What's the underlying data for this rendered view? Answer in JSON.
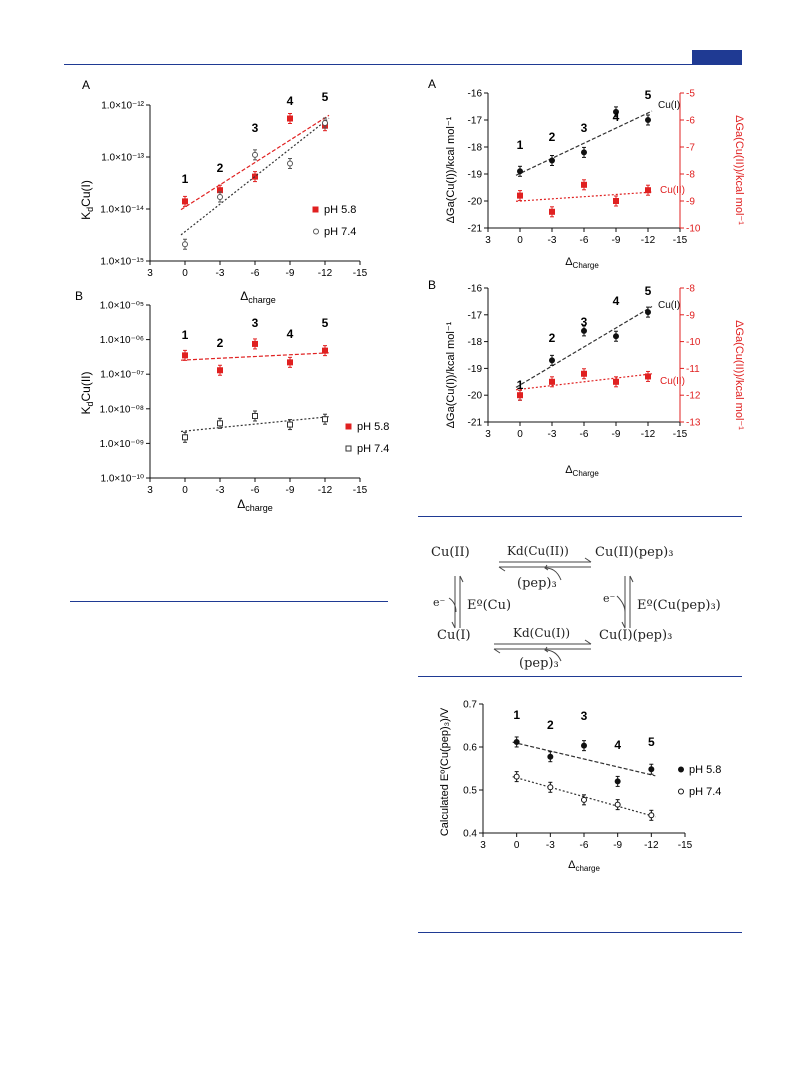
{
  "colors": {
    "accent": "#1f3a93",
    "red": "#e02020",
    "black": "#111111"
  },
  "panel1A": {
    "label": "A",
    "ylabel_main": "K",
    "ylabel_sub": "d",
    "ylabel_rest": "Cu(I)",
    "xlabel_main": "Δ",
    "xlabel_sub": "charge",
    "yticks": [
      "1.0×10⁻¹²",
      "1.0×10⁻¹³",
      "1.0×10⁻¹⁴",
      "1.0×10⁻¹⁵"
    ],
    "xticks": [
      "3",
      "0",
      "-3",
      "-6",
      "-9",
      "-12",
      "-15"
    ],
    "legend": [
      "pH 5.8",
      "pH 7.4"
    ],
    "peptides": [
      "1",
      "2",
      "3",
      "4",
      "5"
    ]
  },
  "panel1B": {
    "label": "B",
    "ylabel_main": "K",
    "ylabel_sub": "d",
    "ylabel_rest": "Cu(II)",
    "xlabel_main": "Δ",
    "xlabel_sub": "charge",
    "yticks": [
      "1.0×10⁻⁰⁵",
      "1.0×10⁻⁰⁶",
      "1.0×10⁻⁰⁷",
      "1.0×10⁻⁰⁸",
      "1.0×10⁻⁰⁹",
      "1.0×10⁻¹⁰"
    ],
    "xticks": [
      "3",
      "0",
      "-3",
      "-6",
      "-9",
      "-12",
      "-15"
    ],
    "legend": [
      "pH 5.8",
      "pH 7.4"
    ],
    "peptides": [
      "1",
      "2",
      "3",
      "4",
      "5"
    ]
  },
  "panel2A": {
    "label": "A",
    "ylabel_left": "ΔGa(Cu(I))/kcal mol⁻¹",
    "ylabel_right": "ΔGa(Cu(II))/kcal mol⁻¹",
    "xlabel_main": "Δ",
    "xlabel_sub": "Charge",
    "yticks_left": [
      "-16",
      "-17",
      "-18",
      "-19",
      "-20",
      "-21"
    ],
    "yticks_right": [
      "-5",
      "-6",
      "-7",
      "-8",
      "-9",
      "-10"
    ],
    "xticks": [
      "3",
      "0",
      "-3",
      "-6",
      "-9",
      "-12",
      "-15"
    ],
    "series_labels": [
      "Cu(I)",
      "Cu(II)"
    ],
    "peptides": [
      "1",
      "2",
      "3",
      "4",
      "5"
    ]
  },
  "panel2B": {
    "label": "B",
    "ylabel_left": "ΔGa(Cu(I))/kcal mol⁻¹",
    "ylabel_right": "ΔGa(Cu(II))/kcal mol⁻¹",
    "xlabel_main": "Δ",
    "xlabel_sub": "Charge",
    "yticks_left": [
      "-16",
      "-17",
      "-18",
      "-19",
      "-20",
      "-21"
    ],
    "yticks_right": [
      "-8",
      "-9",
      "-10",
      "-11",
      "-12",
      "-13"
    ],
    "xticks": [
      "3",
      "0",
      "-3",
      "-6",
      "-9",
      "-12",
      "-15"
    ],
    "series_labels": [
      "Cu(I)",
      "Cu(II)"
    ],
    "peptides": [
      "1",
      "2",
      "3",
      "4",
      "5"
    ]
  },
  "scheme": {
    "cu2": "Cu(II)",
    "cu2pep": "Cu(II)(pep)₃",
    "cu1": "Cu(I)",
    "cu1pep": "Cu(I)(pep)₃",
    "kd2": "Kd(Cu(II))",
    "kd1": "Kd(Cu(I))",
    "pep_top": "(pep)₃",
    "pep_bottom": "(pep)₃",
    "e_left": "e⁻",
    "e_right": "e⁻",
    "eo_cu": "Eº(Cu)",
    "eo_cupep": "Eº(Cu(pep)₃)"
  },
  "panel3": {
    "ylabel": "Calculated Eº(Cu(pep)₃)/V",
    "xlabel_main": "Δ",
    "xlabel_sub": "charge",
    "yticks": [
      "0.7",
      "0.6",
      "0.5",
      "0.4"
    ],
    "xticks": [
      "3",
      "0",
      "-3",
      "-6",
      "-9",
      "-12",
      "-15"
    ],
    "legend": [
      "pH 5.8",
      "pH 7.4"
    ],
    "peptides": [
      "1",
      "2",
      "3",
      "4",
      "5"
    ]
  },
  "chart_data": [
    {
      "type": "scatter",
      "title": "",
      "xlabel": "Δcharge",
      "ylabel": "KdCu(I)",
      "yscale": "log",
      "xlim": [
        3,
        -15
      ],
      "ylim": [
        1e-15,
        1e-12
      ],
      "series": [
        {
          "name": "pH 5.8",
          "x": [
            0,
            -3,
            -6,
            -9,
            -12
          ],
          "y": [
            1.4e-14,
            2.3e-14,
            4.2e-14,
            5.5e-13,
            4e-13
          ]
        },
        {
          "name": "pH 7.4",
          "x": [
            0,
            -3,
            -6,
            -9,
            -12
          ],
          "y": [
            2.1e-15,
            1.7e-14,
            1.1e-13,
            7.5e-14,
            4.5e-13
          ]
        }
      ]
    },
    {
      "type": "scatter",
      "title": "",
      "xlabel": "Δcharge",
      "ylabel": "KdCu(II)",
      "yscale": "log",
      "xlim": [
        3,
        -15
      ],
      "ylim": [
        1e-10,
        1e-05
      ],
      "series": [
        {
          "name": "pH 5.8",
          "x": [
            0,
            -3,
            -6,
            -9,
            -12
          ],
          "y": [
            3.5e-07,
            1.3e-07,
            7.5e-07,
            2.2e-07,
            4.8e-07
          ]
        },
        {
          "name": "pH 7.4",
          "x": [
            0,
            -3,
            -6,
            -9,
            -12
          ],
          "y": [
            1.5e-09,
            3.8e-09,
            6.2e-09,
            3.5e-09,
            5e-09
          ]
        }
      ]
    },
    {
      "type": "scatter",
      "title": "",
      "xlabel": "ΔCharge",
      "ylabel": "ΔGa(Cu(I))/kcal mol⁻¹",
      "xlim": [
        3,
        -15
      ],
      "ylim": [
        -21,
        -16
      ],
      "ylim_right": [
        -10,
        -5
      ],
      "series": [
        {
          "name": "Cu(I)",
          "x": [
            0,
            -3,
            -6,
            -9,
            -12
          ],
          "y": [
            -18.9,
            -18.5,
            -18.2,
            -16.7,
            -17.0
          ]
        },
        {
          "name": "Cu(II)",
          "axis": "right",
          "x": [
            0,
            -3,
            -6,
            -9,
            -12
          ],
          "y": [
            -8.8,
            -9.4,
            -8.4,
            -9.0,
            -8.6
          ]
        }
      ]
    },
    {
      "type": "scatter",
      "title": "",
      "xlabel": "ΔCharge",
      "ylabel": "ΔGa(Cu(I))/kcal mol⁻¹",
      "xlim": [
        3,
        -15
      ],
      "ylim": [
        -21,
        -16
      ],
      "ylim_right": [
        -13,
        -8
      ],
      "series": [
        {
          "name": "Cu(I)",
          "x": [
            0,
            -3,
            -6,
            -9,
            -12
          ],
          "y": [
            -20.0,
            -18.7,
            -17.6,
            -17.8,
            -16.9
          ]
        },
        {
          "name": "Cu(II)",
          "axis": "right",
          "x": [
            0,
            -3,
            -6,
            -9,
            -12
          ],
          "y": [
            -12.0,
            -11.5,
            -11.2,
            -11.5,
            -11.3
          ]
        }
      ]
    },
    {
      "type": "scatter",
      "title": "",
      "xlabel": "Δcharge",
      "ylabel": "Calculated Eº(Cu(pep)₃)/V",
      "xlim": [
        3,
        -15
      ],
      "ylim": [
        0.35,
        0.7
      ],
      "series": [
        {
          "name": "pH 5.8",
          "x": [
            0,
            -3,
            -6,
            -9,
            -12
          ],
          "y": [
            0.597,
            0.557,
            0.587,
            0.49,
            0.523
          ]
        },
        {
          "name": "pH 7.4",
          "x": [
            0,
            -3,
            -6,
            -9,
            -12
          ],
          "y": [
            0.503,
            0.474,
            0.44,
            0.427,
            0.398
          ]
        }
      ]
    }
  ]
}
